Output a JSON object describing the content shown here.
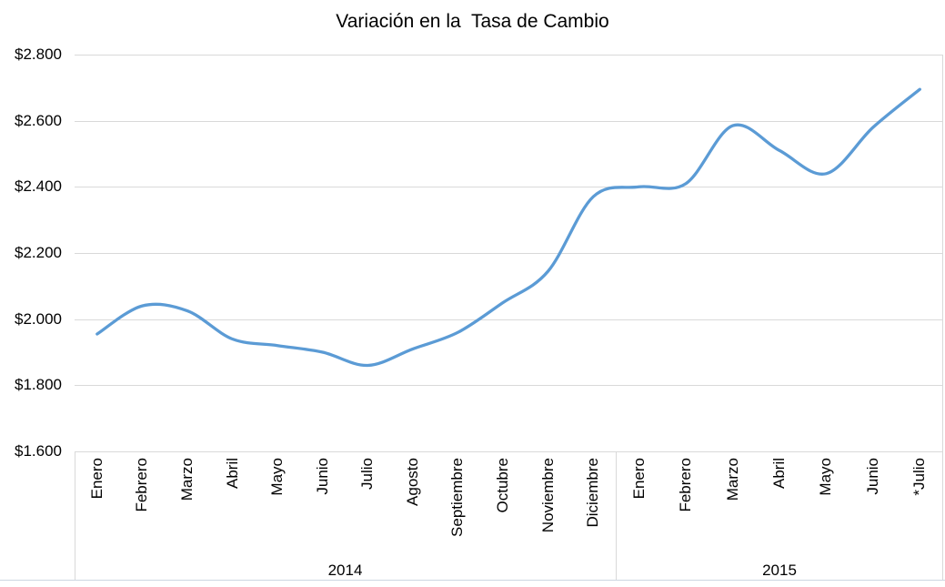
{
  "chart_data": {
    "type": "line",
    "title": "Variación en la  Tasa de Cambio",
    "smooth": true,
    "legend": "none",
    "grid": "horizontal",
    "ylim": [
      1600,
      2800
    ],
    "y_tick_step": 200,
    "y_ticks": [
      {
        "label": "$2.800",
        "value": 2800
      },
      {
        "label": "$2.600",
        "value": 2600
      },
      {
        "label": "$2.400",
        "value": 2400
      },
      {
        "label": "$2.200",
        "value": 2200
      },
      {
        "label": "$2.000",
        "value": 2000
      },
      {
        "label": "$1.800",
        "value": 1800
      },
      {
        "label": "$1.600",
        "value": 1600
      }
    ],
    "x_groups": [
      {
        "year": "2014",
        "months": [
          "Enero",
          "Febrero",
          "Marzo",
          "Abril",
          "Mayo",
          "Junio",
          "Julio",
          "Agosto",
          "Septiembre",
          "Octubre",
          "Noviembre",
          "Diciembre"
        ],
        "values": [
          1955,
          2040,
          2025,
          1940,
          1920,
          1900,
          1860,
          1910,
          1960,
          2050,
          2145,
          2370
        ]
      },
      {
        "year": "2015",
        "months": [
          "Enero",
          "Febrero",
          "Marzo",
          "Abril",
          "Mayo",
          "Junio",
          "*Julio"
        ],
        "values": [
          2400,
          2410,
          2585,
          2510,
          2440,
          2580,
          2695
        ]
      }
    ],
    "colors": {
      "line": "#5B9BD5",
      "gridline": "#D9D9D9",
      "axis_text": "#000000",
      "bottom_border": "#cdd7e1"
    }
  }
}
